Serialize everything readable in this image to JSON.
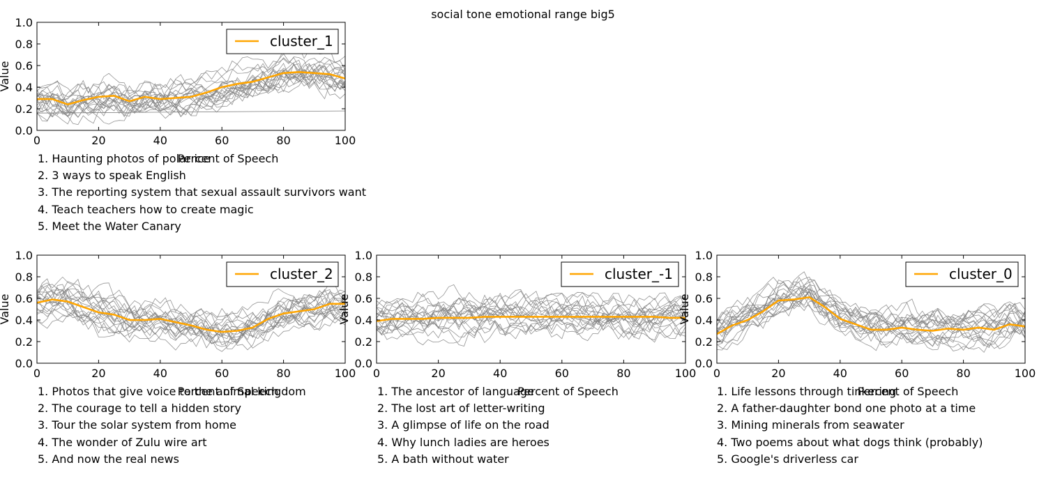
{
  "figure_title": "social tone emotional range big5",
  "chart_data": [
    {
      "type": "line",
      "xlabel": "Percent of Speech",
      "ylabel": "Value",
      "xlim": [
        0,
        100
      ],
      "ylim": [
        0.0,
        1.0
      ],
      "xticks": [
        "0",
        "20",
        "40",
        "60",
        "80",
        "100"
      ],
      "yticks": [
        "0.0",
        "0.2",
        "0.4",
        "0.6",
        "0.8",
        "1.0"
      ],
      "legend_position": "top-right",
      "grid": false,
      "mean_color": "#ffa500",
      "member_color": "#808080",
      "series": [
        {
          "name": "cluster_1",
          "x": [
            0,
            5,
            10,
            15,
            20,
            25,
            30,
            35,
            40,
            45,
            50,
            55,
            60,
            65,
            70,
            75,
            80,
            85,
            90,
            95,
            100
          ],
          "values": [
            0.29,
            0.29,
            0.24,
            0.28,
            0.31,
            0.32,
            0.27,
            0.31,
            0.29,
            0.3,
            0.31,
            0.35,
            0.4,
            0.43,
            0.45,
            0.49,
            0.53,
            0.54,
            0.53,
            0.52,
            0.48
          ]
        }
      ],
      "talks": [
        "1. Haunting photos of polar ice",
        "2. 3 ways to speak English",
        "3. The reporting system that sexual assault survivors want",
        "4. Teach teachers how to create magic",
        "5. Meet the Water Canary"
      ]
    },
    {
      "type": "line",
      "xlabel": "Percent of Speech",
      "ylabel": "Value",
      "xlim": [
        0,
        100
      ],
      "ylim": [
        0.0,
        1.0
      ],
      "xticks": [
        "0",
        "20",
        "40",
        "60",
        "80",
        "100"
      ],
      "yticks": [
        "0.0",
        "0.2",
        "0.4",
        "0.6",
        "0.8",
        "1.0"
      ],
      "legend_position": "top-right",
      "grid": false,
      "mean_color": "#ffa500",
      "member_color": "#808080",
      "series": [
        {
          "name": "cluster_2",
          "x": [
            0,
            5,
            10,
            15,
            20,
            25,
            30,
            35,
            40,
            45,
            50,
            55,
            60,
            65,
            70,
            75,
            80,
            85,
            90,
            95,
            100
          ],
          "values": [
            0.56,
            0.59,
            0.57,
            0.52,
            0.47,
            0.45,
            0.4,
            0.4,
            0.41,
            0.38,
            0.35,
            0.31,
            0.29,
            0.3,
            0.33,
            0.41,
            0.46,
            0.48,
            0.5,
            0.55,
            0.55
          ]
        }
      ],
      "talks": [
        "1. Photos that give voice to the animal kingdom",
        "2. The courage to tell a hidden story",
        "3. Tour the solar system from home",
        "4. The wonder of Zulu wire art",
        "5. And now  the real news"
      ]
    },
    {
      "type": "line",
      "xlabel": "Percent of Speech",
      "ylabel": "Value",
      "xlim": [
        0,
        100
      ],
      "ylim": [
        0.0,
        1.0
      ],
      "xticks": [
        "0",
        "20",
        "40",
        "60",
        "80",
        "100"
      ],
      "yticks": [
        "0.0",
        "0.2",
        "0.4",
        "0.6",
        "0.8",
        "1.0"
      ],
      "legend_position": "top-right",
      "grid": false,
      "mean_color": "#ffa500",
      "member_color": "#808080",
      "series": [
        {
          "name": "cluster_-1",
          "x": [
            0,
            5,
            10,
            15,
            20,
            25,
            30,
            35,
            40,
            45,
            50,
            55,
            60,
            65,
            70,
            75,
            80,
            85,
            90,
            95,
            100
          ],
          "values": [
            0.39,
            0.41,
            0.41,
            0.41,
            0.42,
            0.42,
            0.42,
            0.43,
            0.43,
            0.43,
            0.43,
            0.43,
            0.43,
            0.43,
            0.43,
            0.43,
            0.43,
            0.43,
            0.43,
            0.42,
            0.42
          ]
        }
      ],
      "talks": [
        "1. The ancestor of language",
        "2. The lost art of letter-writing",
        "3. A glimpse of life on the road",
        "4. Why lunch ladies are heroes",
        "5. A bath without water"
      ]
    },
    {
      "type": "line",
      "xlabel": "Percent of Speech",
      "ylabel": "Value",
      "xlim": [
        0,
        100
      ],
      "ylim": [
        0.0,
        1.0
      ],
      "xticks": [
        "0",
        "20",
        "40",
        "60",
        "80",
        "100"
      ],
      "yticks": [
        "0.0",
        "0.2",
        "0.4",
        "0.6",
        "0.8",
        "1.0"
      ],
      "legend_position": "top-right",
      "grid": false,
      "mean_color": "#ffa500",
      "member_color": "#808080",
      "series": [
        {
          "name": "cluster_0",
          "x": [
            0,
            5,
            10,
            15,
            20,
            25,
            30,
            35,
            40,
            45,
            50,
            55,
            60,
            65,
            70,
            75,
            80,
            85,
            90,
            95,
            100
          ],
          "values": [
            0.27,
            0.35,
            0.4,
            0.48,
            0.58,
            0.59,
            0.61,
            0.52,
            0.41,
            0.36,
            0.31,
            0.31,
            0.33,
            0.31,
            0.3,
            0.32,
            0.31,
            0.33,
            0.31,
            0.36,
            0.34
          ]
        }
      ],
      "talks": [
        "1. Life lessons through tinkering",
        "2. A father-daughter bond  one photo at a time",
        "3. Mining minerals from seawater",
        "4. Two poems about what dogs think (probably)",
        "5. Google's driverless car"
      ]
    }
  ]
}
